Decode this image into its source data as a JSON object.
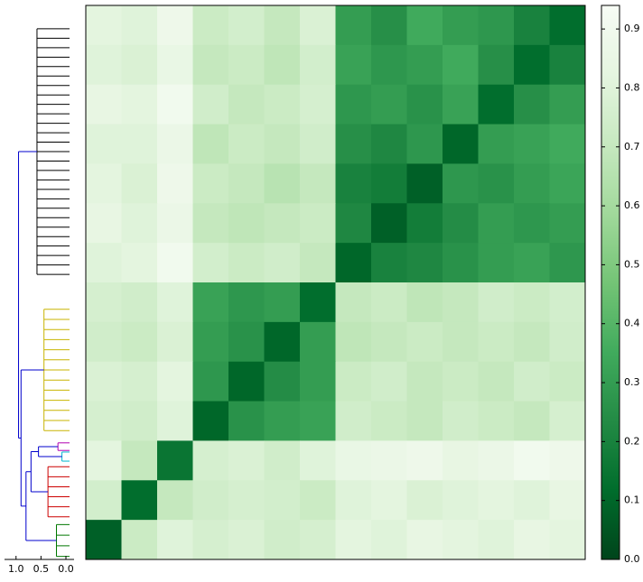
{
  "chart_data": {
    "type": "heatmap",
    "colormap": [
      "#00441b",
      "#006d2c",
      "#238b45",
      "#41ab5d",
      "#74c476",
      "#a1d99b",
      "#c7e9c0",
      "#e5f5e0",
      "#f7fcf5"
    ],
    "clim": [
      0,
      0.94
    ],
    "cticks": [
      {
        "value": 0,
        "label": "0.0"
      },
      0.1,
      0.2,
      0.3,
      0.4,
      0.5,
      0.6,
      0.7,
      0.8,
      0.9
    ],
    "matrix": [
      [
        0.82,
        0.8,
        0.88,
        0.72,
        0.75,
        0.7,
        0.78,
        0.3,
        0.25,
        0.35,
        0.3,
        0.28,
        0.2,
        0.12
      ],
      [
        0.8,
        0.78,
        0.85,
        0.7,
        0.72,
        0.68,
        0.75,
        0.32,
        0.28,
        0.3,
        0.35,
        0.25,
        0.12,
        0.2
      ],
      [
        0.84,
        0.82,
        0.9,
        0.74,
        0.7,
        0.72,
        0.76,
        0.28,
        0.3,
        0.26,
        0.32,
        0.12,
        0.25,
        0.3
      ],
      [
        0.8,
        0.8,
        0.86,
        0.68,
        0.72,
        0.7,
        0.74,
        0.25,
        0.22,
        0.28,
        0.1,
        0.3,
        0.32,
        0.35
      ],
      [
        0.82,
        0.78,
        0.88,
        0.72,
        0.7,
        0.66,
        0.7,
        0.2,
        0.18,
        0.08,
        0.28,
        0.26,
        0.3,
        0.33
      ],
      [
        0.84,
        0.8,
        0.86,
        0.7,
        0.68,
        0.7,
        0.72,
        0.22,
        0.08,
        0.18,
        0.24,
        0.3,
        0.28,
        0.3
      ],
      [
        0.8,
        0.82,
        0.9,
        0.75,
        0.72,
        0.74,
        0.7,
        0.1,
        0.2,
        0.22,
        0.26,
        0.3,
        0.32,
        0.28
      ],
      [
        0.76,
        0.74,
        0.8,
        0.32,
        0.28,
        0.3,
        0.12,
        0.7,
        0.72,
        0.68,
        0.7,
        0.74,
        0.72,
        0.75
      ],
      [
        0.74,
        0.72,
        0.78,
        0.3,
        0.26,
        0.1,
        0.3,
        0.68,
        0.7,
        0.72,
        0.7,
        0.72,
        0.7,
        0.74
      ],
      [
        0.78,
        0.76,
        0.82,
        0.28,
        0.1,
        0.24,
        0.3,
        0.72,
        0.74,
        0.7,
        0.72,
        0.7,
        0.74,
        0.72
      ],
      [
        0.76,
        0.74,
        0.8,
        0.1,
        0.26,
        0.3,
        0.32,
        0.74,
        0.72,
        0.7,
        0.74,
        0.72,
        0.7,
        0.76
      ],
      [
        0.82,
        0.7,
        0.15,
        0.76,
        0.78,
        0.74,
        0.8,
        0.85,
        0.86,
        0.88,
        0.84,
        0.86,
        0.9,
        0.88
      ],
      [
        0.75,
        0.12,
        0.7,
        0.74,
        0.76,
        0.75,
        0.72,
        0.8,
        0.82,
        0.78,
        0.8,
        0.82,
        0.8,
        0.84
      ],
      [
        0.08,
        0.72,
        0.8,
        0.76,
        0.78,
        0.74,
        0.76,
        0.82,
        0.8,
        0.84,
        0.82,
        0.8,
        0.84,
        0.82
      ]
    ],
    "dendrogram": {
      "xlim": [
        1.05,
        0
      ],
      "xticks": [
        {
          "value": 1,
          "label": "1.0"
        },
        0.5,
        {
          "value": 0,
          "label": "0.0"
        }
      ],
      "link_color": "#0000cc",
      "clusters": [
        {
          "color": "#000000",
          "height": 0.58
        },
        {
          "color": "#c8b400",
          "height": 0.44
        },
        {
          "color": "#b000b0",
          "height": 0.16
        },
        {
          "color": "#00b8d0",
          "height": 0.08
        },
        {
          "color": "#cc0000",
          "height": 0.36
        },
        {
          "color": "#007700",
          "height": 0.19
        }
      ],
      "merges": [
        0.95,
        0.9,
        0.8,
        0.7,
        0.55
      ]
    }
  }
}
